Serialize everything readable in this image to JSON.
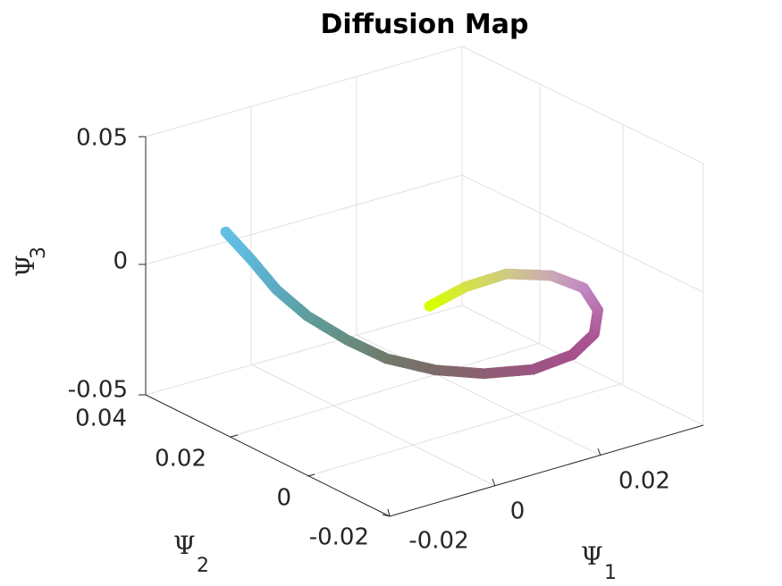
{
  "chart_data": {
    "type": "scatter",
    "title": "Diffusion Map",
    "xlabel": "Ψ",
    "xlabel_sub": "1",
    "ylabel": "Ψ",
    "ylabel_sub": "2",
    "zlabel": "Ψ",
    "zlabel_sub": "3",
    "grid": true,
    "x_ticks": [
      "-0.02",
      "0",
      "0.02"
    ],
    "y_ticks": [
      "-0.02",
      "0",
      "0.02",
      "0.04"
    ],
    "z_ticks": [
      "-0.05",
      "0",
      "0.05"
    ],
    "xlim": [
      -0.025,
      0.035
    ],
    "ylim": [
      -0.025,
      0.04
    ],
    "zlim": [
      -0.05,
      0.05
    ],
    "point_color_start": "#5fc0e8",
    "point_color_mid": "#84706a",
    "point_color_loop": "#a8508c",
    "point_color_top": "#c58fc8",
    "point_color_end": "#d7ff00",
    "series": [
      {
        "points": [
          {
            "x": -0.014,
            "y": 0.034,
            "z": 0.011,
            "color": "#62bfe5"
          },
          {
            "x": -0.012,
            "y": 0.03,
            "z": 0.002,
            "color": "#5fb8d8"
          },
          {
            "x": -0.01,
            "y": 0.026,
            "z": -0.008,
            "color": "#5cabc4"
          },
          {
            "x": -0.007,
            "y": 0.022,
            "z": -0.017,
            "color": "#5e9e9f"
          },
          {
            "x": -0.003,
            "y": 0.017,
            "z": -0.025,
            "color": "#658f83"
          },
          {
            "x": 0.001,
            "y": 0.012,
            "z": -0.031,
            "color": "#707a6b"
          },
          {
            "x": 0.006,
            "y": 0.006,
            "z": -0.034,
            "color": "#7d6b69"
          },
          {
            "x": 0.011,
            "y": 0.0,
            "z": -0.034,
            "color": "#8c5f72"
          },
          {
            "x": 0.016,
            "y": -0.006,
            "z": -0.031,
            "color": "#9a5680"
          },
          {
            "x": 0.02,
            "y": -0.011,
            "z": -0.024,
            "color": "#a6508b"
          },
          {
            "x": 0.022,
            "y": -0.014,
            "z": -0.015,
            "color": "#ab5493"
          },
          {
            "x": 0.022,
            "y": -0.015,
            "z": -0.005,
            "color": "#b569a7"
          },
          {
            "x": 0.02,
            "y": -0.014,
            "z": 0.004,
            "color": "#c284c2"
          },
          {
            "x": 0.016,
            "y": -0.011,
            "z": 0.009,
            "color": "#c9a6b7"
          },
          {
            "x": 0.011,
            "y": -0.006,
            "z": 0.009,
            "color": "#d0c889"
          },
          {
            "x": 0.006,
            "y": -0.002,
            "z": 0.004,
            "color": "#d4e04c"
          },
          {
            "x": 0.002,
            "y": 0.002,
            "z": -0.004,
            "color": "#d7ff00"
          }
        ]
      }
    ]
  }
}
